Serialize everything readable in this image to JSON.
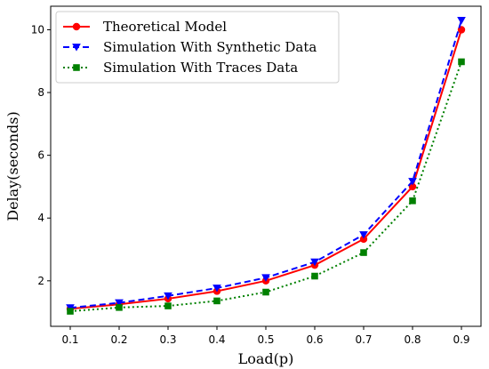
{
  "chart_data": {
    "type": "line",
    "xlabel": "Load(p)",
    "ylabel": "Delay(seconds)",
    "x": [
      0.1,
      0.2,
      0.3,
      0.4,
      0.5,
      0.6,
      0.7,
      0.8,
      0.9
    ],
    "x_ticks": [
      "0.1",
      "0.2",
      "0.3",
      "0.4",
      "0.5",
      "0.6",
      "0.7",
      "0.8",
      "0.9"
    ],
    "y_ticks": [
      "2",
      "4",
      "6",
      "8",
      "10"
    ],
    "xlim": [
      0.06,
      0.94
    ],
    "ylim": [
      0.55,
      10.75
    ],
    "grid": false,
    "legend_position": "top-left",
    "series": [
      {
        "name": "Theoretical Model",
        "values": [
          1.11,
          1.25,
          1.43,
          1.67,
          2.0,
          2.5,
          3.33,
          5.0,
          10.0
        ],
        "color": "#ff0000",
        "line_style": "solid",
        "marker": "circle"
      },
      {
        "name": "Simulation With Synthetic Data",
        "values": [
          1.14,
          1.3,
          1.52,
          1.77,
          2.1,
          2.6,
          3.47,
          5.17,
          10.3
        ],
        "color": "#0000ff",
        "line_style": "dashed",
        "marker": "triangle-down"
      },
      {
        "name": "Simulation With Traces Data",
        "values": [
          1.03,
          1.15,
          1.2,
          1.36,
          1.64,
          2.15,
          2.9,
          4.55,
          8.98
        ],
        "color": "#008000",
        "line_style": "dotted",
        "marker": "square"
      }
    ]
  }
}
